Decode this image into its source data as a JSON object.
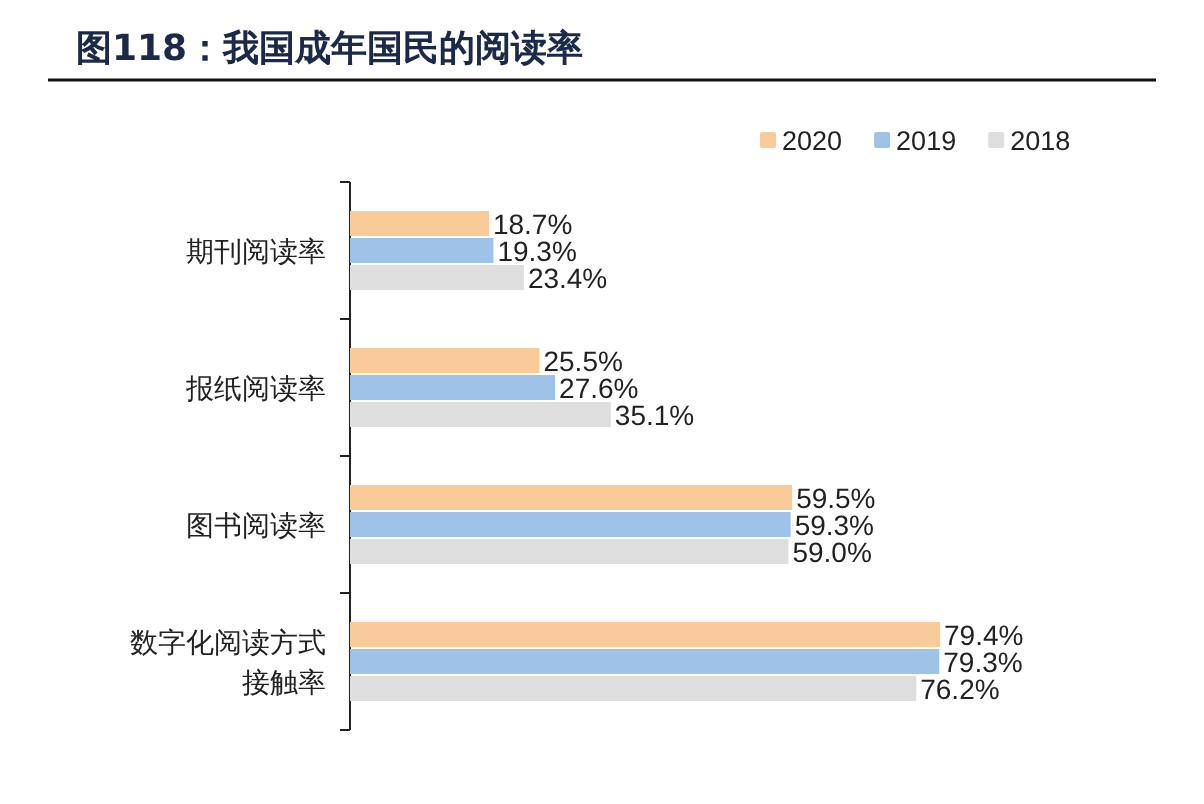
{
  "chart_data": {
    "type": "bar",
    "orientation": "horizontal",
    "title": "图118：我国成年国民的阅读率",
    "categories": [
      "期刊阅读率",
      "报纸阅读率",
      "图书阅读率",
      "数字化阅读方式接触率"
    ],
    "series": [
      {
        "name": "2020",
        "color": "#f8cb98",
        "values": [
          18.7,
          25.5,
          59.5,
          79.4
        ],
        "value_labels": [
          "18.7%",
          "25.5%",
          "59.5%",
          "79.4%"
        ]
      },
      {
        "name": "2019",
        "color": "#9fc3e8",
        "values": [
          19.3,
          27.6,
          59.3,
          79.3
        ],
        "value_labels": [
          "19.3%",
          "27.6%",
          "59.3%",
          "79.3%"
        ]
      },
      {
        "name": "2018",
        "color": "#dedede",
        "values": [
          23.4,
          35.1,
          59.0,
          76.2
        ],
        "value_labels": [
          "23.4%",
          "35.1%",
          "59.0%",
          "76.2%"
        ]
      }
    ],
    "legend": "top right"
  }
}
